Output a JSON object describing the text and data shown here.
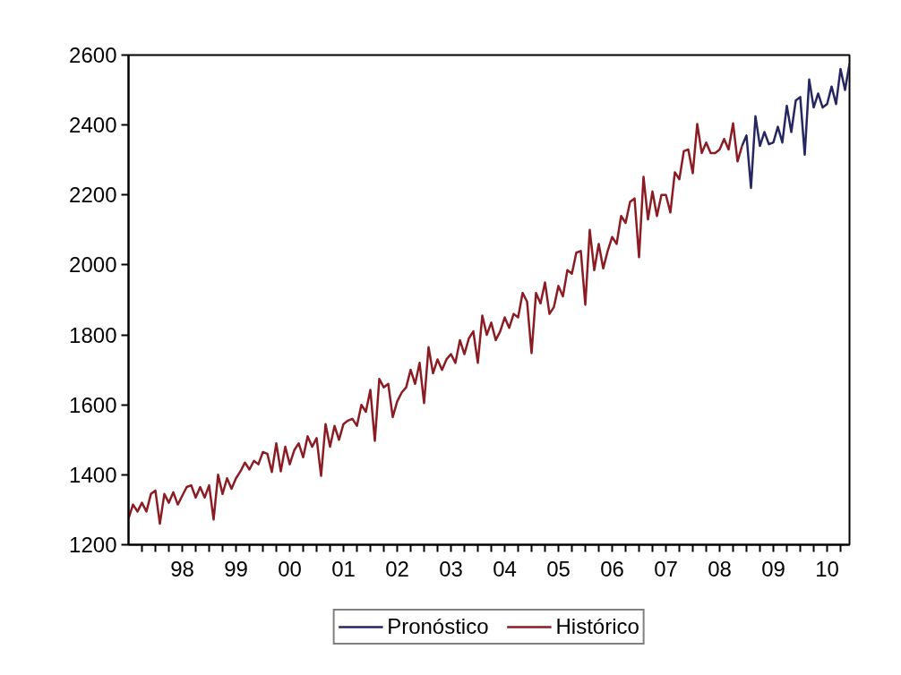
{
  "chart_data": {
    "type": "line",
    "legend": "bottom",
    "grid": false,
    "line_style": "solid",
    "marker": "none",
    "ylim": [
      1200,
      2600
    ],
    "yticks": [
      1200,
      1400,
      1600,
      1800,
      2000,
      2200,
      2400,
      2600
    ],
    "xlim": [
      "1997-07",
      "2010-12"
    ],
    "xticks": [
      {
        "value": "1997-10",
        "label": null
      },
      {
        "value": "1998-01",
        "label": null
      },
      {
        "value": "1998-04",
        "label": null
      },
      {
        "value": "1998-07",
        "label": "98"
      },
      {
        "value": "1998-10",
        "label": null
      },
      {
        "value": "1999-01",
        "label": null
      },
      {
        "value": "1999-04",
        "label": null
      },
      {
        "value": "1999-07",
        "label": "99"
      },
      {
        "value": "1999-10",
        "label": null
      },
      {
        "value": "2000-01",
        "label": null
      },
      {
        "value": "2000-04",
        "label": null
      },
      {
        "value": "2000-07",
        "label": "00"
      },
      {
        "value": "2000-10",
        "label": null
      },
      {
        "value": "2001-01",
        "label": null
      },
      {
        "value": "2001-04",
        "label": null
      },
      {
        "value": "2001-07",
        "label": "01"
      },
      {
        "value": "2001-10",
        "label": null
      },
      {
        "value": "2002-01",
        "label": null
      },
      {
        "value": "2002-04",
        "label": null
      },
      {
        "value": "2002-07",
        "label": "02"
      },
      {
        "value": "2002-10",
        "label": null
      },
      {
        "value": "2003-01",
        "label": null
      },
      {
        "value": "2003-04",
        "label": null
      },
      {
        "value": "2003-07",
        "label": "03"
      },
      {
        "value": "2003-10",
        "label": null
      },
      {
        "value": "2004-01",
        "label": null
      },
      {
        "value": "2004-04",
        "label": null
      },
      {
        "value": "2004-07",
        "label": "04"
      },
      {
        "value": "2004-10",
        "label": null
      },
      {
        "value": "2005-01",
        "label": null
      },
      {
        "value": "2005-04",
        "label": null
      },
      {
        "value": "2005-07",
        "label": "05"
      },
      {
        "value": "2005-10",
        "label": null
      },
      {
        "value": "2006-01",
        "label": null
      },
      {
        "value": "2006-04",
        "label": null
      },
      {
        "value": "2006-07",
        "label": "06"
      },
      {
        "value": "2006-10",
        "label": null
      },
      {
        "value": "2007-01",
        "label": null
      },
      {
        "value": "2007-04",
        "label": null
      },
      {
        "value": "2007-07",
        "label": "07"
      },
      {
        "value": "2007-10",
        "label": null
      },
      {
        "value": "2008-01",
        "label": null
      },
      {
        "value": "2008-04",
        "label": null
      },
      {
        "value": "2008-07",
        "label": "08"
      },
      {
        "value": "2008-10",
        "label": null
      },
      {
        "value": "2009-01",
        "label": null
      },
      {
        "value": "2009-04",
        "label": null
      },
      {
        "value": "2009-07",
        "label": "09"
      },
      {
        "value": "2009-10",
        "label": null
      },
      {
        "value": "2010-01",
        "label": null
      },
      {
        "value": "2010-04",
        "label": null
      },
      {
        "value": "2010-07",
        "label": "10"
      },
      {
        "value": "2010-10",
        "label": null
      }
    ],
    "series": [
      {
        "name": "Pronóstico",
        "color": "#262660",
        "x": [
          "2008-12",
          "2009-01",
          "2009-02",
          "2009-03",
          "2009-04",
          "2009-05",
          "2009-06",
          "2009-07",
          "2009-08",
          "2009-09",
          "2009-10",
          "2009-11",
          "2009-12",
          "2010-01",
          "2010-02",
          "2010-03",
          "2010-04",
          "2010-05",
          "2010-06",
          "2010-07",
          "2010-08",
          "2010-09",
          "2010-10",
          "2010-11",
          "2010-12"
        ],
        "values": [
          2340,
          2370,
          2220,
          2425,
          2340,
          2380,
          2345,
          2350,
          2395,
          2350,
          2455,
          2380,
          2470,
          2480,
          2315,
          2530,
          2450,
          2490,
          2450,
          2460,
          2510,
          2460,
          2560,
          2500,
          2575
        ]
      },
      {
        "name": "Histórico",
        "color": "#8b1c24",
        "x": [
          "1997-07",
          "1997-08",
          "1997-09",
          "1997-10",
          "1997-11",
          "1997-12",
          "1998-01",
          "1998-02",
          "1998-03",
          "1998-04",
          "1998-05",
          "1998-06",
          "1998-07",
          "1998-08",
          "1998-09",
          "1998-10",
          "1998-11",
          "1998-12",
          "1999-01",
          "1999-02",
          "1999-03",
          "1999-04",
          "1999-05",
          "1999-06",
          "1999-07",
          "1999-08",
          "1999-09",
          "1999-10",
          "1999-11",
          "1999-12",
          "2000-01",
          "2000-02",
          "2000-03",
          "2000-04",
          "2000-05",
          "2000-06",
          "2000-07",
          "2000-08",
          "2000-09",
          "2000-10",
          "2000-11",
          "2000-12",
          "2001-01",
          "2001-02",
          "2001-03",
          "2001-04",
          "2001-05",
          "2001-06",
          "2001-07",
          "2001-08",
          "2001-09",
          "2001-10",
          "2001-11",
          "2001-12",
          "2002-01",
          "2002-02",
          "2002-03",
          "2002-04",
          "2002-05",
          "2002-06",
          "2002-07",
          "2002-08",
          "2002-09",
          "2002-10",
          "2002-11",
          "2002-12",
          "2003-01",
          "2003-02",
          "2003-03",
          "2003-04",
          "2003-05",
          "2003-06",
          "2003-07",
          "2003-08",
          "2003-09",
          "2003-10",
          "2003-11",
          "2003-12",
          "2004-01",
          "2004-02",
          "2004-03",
          "2004-04",
          "2004-05",
          "2004-06",
          "2004-07",
          "2004-08",
          "2004-09",
          "2004-10",
          "2004-11",
          "2004-12",
          "2005-01",
          "2005-02",
          "2005-03",
          "2005-04",
          "2005-05",
          "2005-06",
          "2005-07",
          "2005-08",
          "2005-09",
          "2005-10",
          "2005-11",
          "2005-12",
          "2006-01",
          "2006-02",
          "2006-03",
          "2006-04",
          "2006-05",
          "2006-06",
          "2006-07",
          "2006-08",
          "2006-09",
          "2006-10",
          "2006-11",
          "2006-12",
          "2007-01",
          "2007-02",
          "2007-03",
          "2007-04",
          "2007-05",
          "2007-06",
          "2007-07",
          "2007-08",
          "2007-09",
          "2007-10",
          "2007-11",
          "2007-12",
          "2008-01",
          "2008-02",
          "2008-03",
          "2008-04",
          "2008-05",
          "2008-06",
          "2008-07",
          "2008-08",
          "2008-09",
          "2008-10",
          "2008-11",
          "2008-12"
        ],
        "values": [
          1275,
          1315,
          1295,
          1320,
          1295,
          1345,
          1355,
          1260,
          1345,
          1320,
          1350,
          1315,
          1340,
          1365,
          1370,
          1335,
          1365,
          1335,
          1370,
          1272,
          1400,
          1345,
          1390,
          1360,
          1390,
          1410,
          1435,
          1415,
          1440,
          1430,
          1465,
          1460,
          1408,
          1490,
          1410,
          1480,
          1430,
          1470,
          1490,
          1450,
          1510,
          1480,
          1505,
          1397,
          1545,
          1480,
          1540,
          1500,
          1545,
          1555,
          1560,
          1540,
          1600,
          1580,
          1643,
          1497,
          1674,
          1650,
          1660,
          1565,
          1610,
          1635,
          1650,
          1700,
          1660,
          1720,
          1605,
          1765,
          1690,
          1730,
          1700,
          1730,
          1745,
          1720,
          1785,
          1745,
          1790,
          1810,
          1720,
          1855,
          1800,
          1835,
          1785,
          1810,
          1850,
          1820,
          1860,
          1850,
          1920,
          1895,
          1748,
          1920,
          1890,
          1950,
          1860,
          1880,
          1940,
          1910,
          1985,
          1975,
          2035,
          2040,
          1886,
          2100,
          1985,
          2060,
          1990,
          2040,
          2080,
          2060,
          2140,
          2120,
          2180,
          2190,
          2022,
          2252,
          2130,
          2210,
          2140,
          2200,
          2200,
          2150,
          2265,
          2245,
          2325,
          2330,
          2262,
          2403,
          2320,
          2350,
          2320,
          2320,
          2330,
          2360,
          2330,
          2405,
          2296,
          2340
        ]
      }
    ]
  }
}
